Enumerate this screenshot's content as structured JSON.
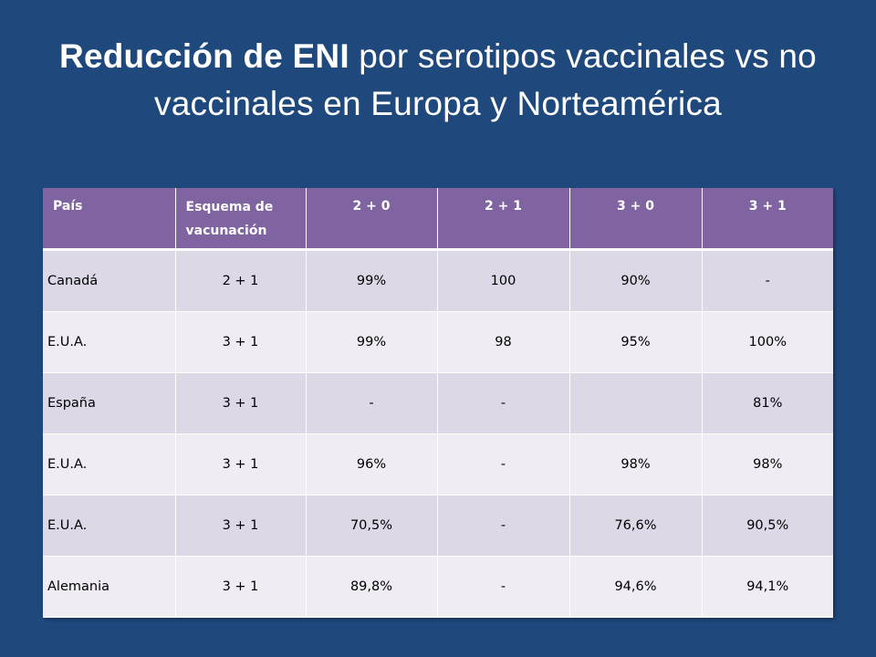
{
  "title": {
    "bold": "Reducción de ENI",
    "rest": " por serotipos vaccinales vs no vaccinales en Europa y Norteamérica"
  },
  "table": {
    "headers": [
      "País",
      "Esquema de vacunación",
      "2 + 0",
      "2 + 1",
      "3 + 0",
      "3 + 1"
    ],
    "rows": [
      [
        "Canadá",
        "2 + 1",
        "99%",
        "100",
        "90%",
        "-"
      ],
      [
        "E.U.A.",
        "3 + 1",
        "99%",
        "98",
        "95%",
        "100%"
      ],
      [
        "España",
        "3 + 1",
        "-",
        "-",
        "",
        "81%"
      ],
      [
        "E.U.A.",
        "3 + 1",
        "96%",
        "-",
        "98%",
        "98%"
      ],
      [
        "E.U.A.",
        "3 + 1",
        "70,5%",
        "-",
        "76,6%",
        "90,5%"
      ],
      [
        "Alemania",
        "3 + 1",
        "89,8%",
        "-",
        "94,6%",
        "94,1%"
      ]
    ]
  },
  "colors": {
    "background": "#1f497d",
    "header": "#8064a2",
    "row_odd": "#dcd8e6",
    "row_even": "#efedf3"
  }
}
